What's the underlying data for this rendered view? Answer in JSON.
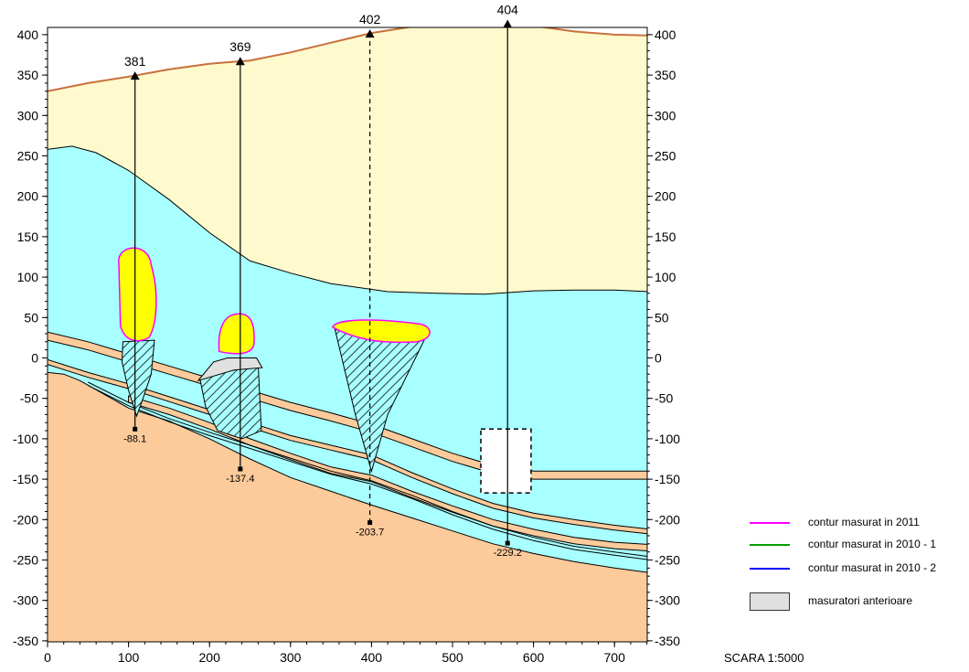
{
  "section": {
    "x_ticks": [
      "0",
      "100",
      "200",
      "300",
      "400",
      "500",
      "600",
      "700"
    ],
    "y_ticks": [
      "400",
      "350",
      "300",
      "250",
      "200",
      "150",
      "100",
      "50",
      "0",
      "-50",
      "-100",
      "-150",
      "-200",
      "-250",
      "-300",
      "-350"
    ],
    "x_range": [
      0,
      745
    ],
    "y_range": [
      -350,
      420
    ],
    "colors": {
      "upper_layer": "#fffacd",
      "water_layer": "#a8ffff",
      "bedrock": "#fdcb9b",
      "coal_seam": "#fdcb9b",
      "cavity_fill": "#ffff00",
      "contour_2011": "#ff00ff",
      "contour_2010_1": "#00a000",
      "contour_2010_2": "#0000ff",
      "previous_measurements": "#e0e0e0",
      "surface_line": "#c8703c"
    }
  },
  "boreholes": [
    {
      "name": "381",
      "top": "381",
      "bottom": "-88.1",
      "x": 108,
      "y_top": 350,
      "y_bottom": -88.1,
      "style": "solid"
    },
    {
      "name": "369",
      "top": "369",
      "bottom": "-137.4",
      "x": 238,
      "y_top": 368,
      "y_bottom": -137.4,
      "style": "solid"
    },
    {
      "name": "402",
      "top": "402",
      "bottom": "-203.7",
      "x": 398,
      "y_top": 402,
      "y_bottom": -203.7,
      "style": "dashed"
    },
    {
      "name": "404",
      "top": "404",
      "bottom": "-229.2",
      "x": 568,
      "y_top": 414,
      "y_bottom": -229.2,
      "style": "solid"
    }
  ],
  "legend": {
    "items": [
      {
        "label": "contur masurat in 2011",
        "kind": "line",
        "color": "#ff00ff"
      },
      {
        "label": "contur masurat in 2010 - 1",
        "kind": "line",
        "color": "#00a000"
      },
      {
        "label": "contur masurat in 2010 - 2",
        "kind": "line",
        "color": "#0000ff"
      },
      {
        "label": "masuratori anterioare",
        "kind": "box",
        "color": "#e0e0e0"
      }
    ]
  },
  "scale_text": "SCARA 1:5000"
}
